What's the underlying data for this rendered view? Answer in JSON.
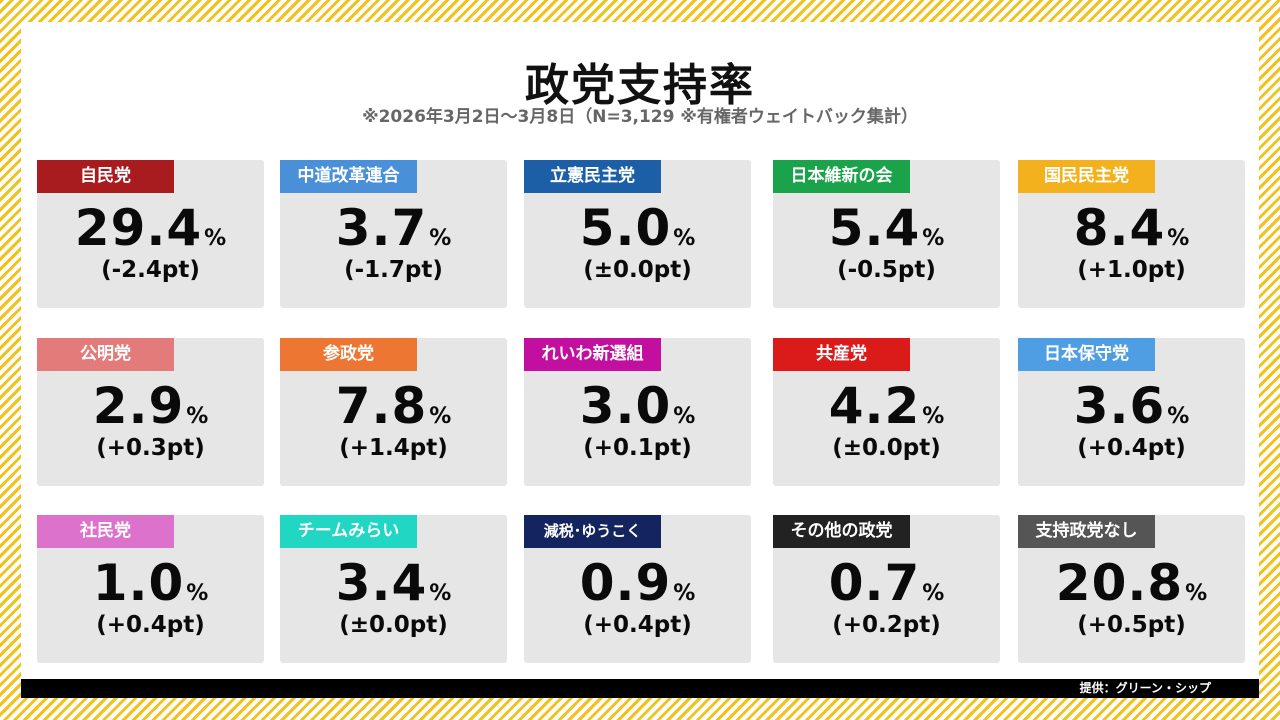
{
  "header": {
    "title": "政党支持率",
    "subtitle": "※2026年3月2日〜3月8日（N=3,129 ※有権者ウェイトバック集計）"
  },
  "footer": {
    "credit": "提供：グリーン・シップ"
  },
  "chart_data": {
    "type": "table",
    "title": "政党支持率",
    "subtitle": "※2026年3月2日〜3月8日（N=3,129 ※有権者ウェイトバック集計）",
    "unit": "%",
    "parties": [
      {
        "name": "自民党",
        "color": "#a81c20",
        "value": "29.4",
        "change": "(-2.4pt)"
      },
      {
        "name": "中道改革連合",
        "color": "#4a90d9",
        "value": "3.7",
        "change": "(-1.7pt)"
      },
      {
        "name": "立憲民主党",
        "color": "#1d5fa6",
        "value": "5.0",
        "change": "(±0.0pt)"
      },
      {
        "name": "日本維新の会",
        "color": "#1aa34a",
        "value": "5.4",
        "change": "(-0.5pt)"
      },
      {
        "name": "国民民主党",
        "color": "#f2b11d",
        "value": "8.4",
        "change": "(+1.0pt)"
      },
      {
        "name": "公明党",
        "color": "#e47b7b",
        "value": "2.9",
        "change": "(+0.3pt)"
      },
      {
        "name": "参政党",
        "color": "#ee7633",
        "value": "7.8",
        "change": "(+1.4pt)"
      },
      {
        "name": "れいわ新選組",
        "color": "#c20fa0",
        "value": "3.0",
        "change": "(+0.1pt)"
      },
      {
        "name": "共産党",
        "color": "#db1a1a",
        "value": "4.2",
        "change": "(±0.0pt)"
      },
      {
        "name": "日本保守党",
        "color": "#4f9ee3",
        "value": "3.6",
        "change": "(+0.4pt)"
      },
      {
        "name": "社民党",
        "color": "#dc72cc",
        "value": "1.0",
        "change": "(+0.4pt)"
      },
      {
        "name": "チームみらい",
        "color": "#22d6c4",
        "value": "3.4",
        "change": "(±0.0pt)"
      },
      {
        "name": "減税･ゆうこく",
        "color": "#14245e",
        "value": "0.9",
        "change": "(+0.4pt)"
      },
      {
        "name": "その他の政党",
        "color": "#222222",
        "value": "0.7",
        "change": "(+0.2pt)"
      },
      {
        "name": "支持政党なし",
        "color": "#555555",
        "value": "20.8",
        "change": "(+0.5pt)"
      }
    ]
  }
}
